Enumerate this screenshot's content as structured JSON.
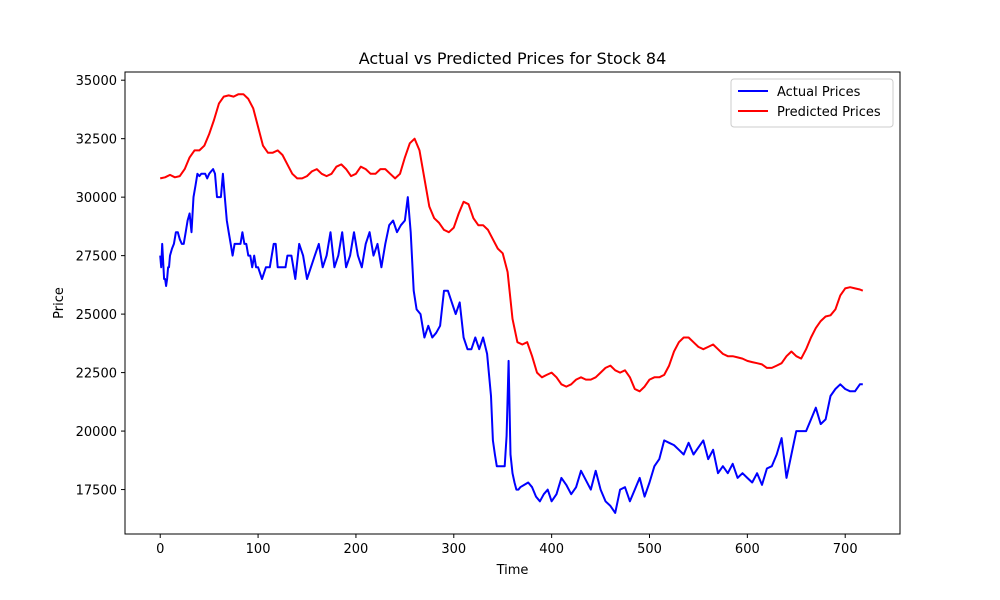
{
  "chart_data": {
    "type": "line",
    "title": "Actual vs Predicted Prices for Stock 84",
    "xlabel": "Time",
    "ylabel": "Price",
    "xlim": [
      -36,
      756
    ],
    "ylim": [
      15600,
      35350
    ],
    "xticks": [
      0,
      100,
      200,
      300,
      400,
      500,
      600,
      700
    ],
    "yticks": [
      17500,
      20000,
      22500,
      25000,
      27500,
      30000,
      32500,
      35000
    ],
    "grid": false,
    "legend_position": "upper right",
    "series": [
      {
        "name": "Actual Prices",
        "color": "#0000ff",
        "x": [
          0,
          1,
          2,
          4,
          5,
          6,
          7,
          8,
          9,
          10,
          12,
          14,
          16,
          18,
          20,
          22,
          24,
          26,
          28,
          30,
          32,
          34,
          36,
          38,
          40,
          42,
          44,
          46,
          48,
          50,
          52,
          54,
          56,
          58,
          60,
          62,
          64,
          66,
          68,
          70,
          72,
          74,
          76,
          78,
          80,
          82,
          84,
          86,
          88,
          90,
          92,
          94,
          96,
          98,
          100,
          104,
          108,
          112,
          116,
          118,
          120,
          124,
          128,
          130,
          134,
          138,
          142,
          146,
          150,
          154,
          158,
          162,
          166,
          170,
          174,
          178,
          182,
          186,
          190,
          194,
          198,
          202,
          206,
          210,
          214,
          218,
          222,
          226,
          230,
          234,
          238,
          242,
          246,
          250,
          253,
          256,
          259,
          262,
          266,
          270,
          274,
          278,
          282,
          286,
          290,
          294,
          298,
          302,
          306,
          310,
          314,
          318,
          322,
          326,
          330,
          334,
          338,
          340,
          342,
          344,
          346,
          348,
          350,
          352,
          354,
          356,
          358,
          360,
          362,
          364,
          366,
          368,
          372,
          376,
          380,
          384,
          388,
          392,
          396,
          400,
          405,
          410,
          415,
          420,
          425,
          430,
          435,
          440,
          445,
          450,
          455,
          460,
          465,
          470,
          475,
          480,
          485,
          490,
          495,
          500,
          505,
          510,
          515,
          520,
          525,
          530,
          535,
          540,
          545,
          550,
          555,
          560,
          565,
          570,
          575,
          580,
          585,
          590,
          595,
          600,
          605,
          610,
          615,
          620,
          625,
          630,
          635,
          640,
          645,
          650,
          655,
          660,
          665,
          670,
          675,
          680,
          685,
          690,
          695,
          700,
          705,
          710,
          715,
          718
        ],
        "y": [
          27500,
          27000,
          28000,
          26500,
          26500,
          26200,
          26500,
          27000,
          27000,
          27500,
          27800,
          28000,
          28500,
          28500,
          28200,
          28000,
          28000,
          28500,
          29000,
          29300,
          28500,
          30000,
          30500,
          31000,
          30900,
          31000,
          31000,
          31000,
          30800,
          31000,
          31100,
          31200,
          31000,
          30000,
          30000,
          30000,
          31000,
          30000,
          29000,
          28500,
          28000,
          27500,
          28000,
          28000,
          28000,
          28000,
          28500,
          28000,
          28000,
          27500,
          27500,
          27000,
          27500,
          27000,
          27000,
          26500,
          27000,
          27000,
          28000,
          28000,
          27000,
          27000,
          27000,
          27500,
          27500,
          26500,
          28000,
          27500,
          26500,
          27000,
          27500,
          28000,
          27000,
          27500,
          28500,
          27000,
          27500,
          28500,
          27000,
          27500,
          28500,
          27500,
          27000,
          28000,
          28500,
          27500,
          28000,
          27000,
          28000,
          28800,
          29000,
          28500,
          28800,
          29000,
          30000,
          28500,
          26000,
          25200,
          25000,
          24000,
          24500,
          24000,
          24200,
          24500,
          26000,
          26000,
          25500,
          25000,
          25500,
          24000,
          23500,
          23500,
          24000,
          23500,
          24000,
          23300,
          21500,
          19600,
          19000,
          18500,
          18500,
          18500,
          18500,
          18500,
          19800,
          23000,
          19000,
          18200,
          17800,
          17500,
          17500,
          17600,
          17700,
          17800,
          17600,
          17200,
          17000,
          17300,
          17500,
          17000,
          17300,
          18000,
          17700,
          17300,
          17600,
          18300,
          17900,
          17500,
          18300,
          17500,
          17000,
          16800,
          16500,
          17500,
          17600,
          17000,
          17500,
          18000,
          17200,
          17800,
          18500,
          18800,
          19600,
          19500,
          19400,
          19200,
          19000,
          19500,
          19000,
          19300,
          19600,
          18800,
          19200,
          18200,
          18500,
          18200,
          18600,
          18000,
          18200,
          18000,
          17800,
          18200,
          17700,
          18400,
          18500,
          19000,
          19700,
          18000,
          19000,
          20000,
          20000,
          20000,
          20500,
          21000,
          20300,
          20500,
          21500,
          21800,
          22000,
          21800,
          21700,
          21700,
          22000,
          22000
        ]
      },
      {
        "name": "Predicted Prices",
        "color": "#ff0000",
        "x": [
          0,
          5,
          10,
          15,
          20,
          25,
          30,
          35,
          40,
          45,
          50,
          55,
          60,
          65,
          70,
          75,
          80,
          85,
          90,
          95,
          100,
          105,
          110,
          115,
          120,
          125,
          130,
          135,
          140,
          145,
          150,
          155,
          160,
          165,
          170,
          175,
          180,
          185,
          190,
          195,
          200,
          205,
          210,
          215,
          220,
          225,
          230,
          235,
          240,
          245,
          250,
          255,
          260,
          265,
          270,
          275,
          280,
          285,
          290,
          295,
          300,
          305,
          310,
          315,
          320,
          325,
          330,
          335,
          340,
          345,
          350,
          355,
          360,
          365,
          370,
          375,
          380,
          385,
          390,
          395,
          400,
          405,
          410,
          415,
          420,
          425,
          430,
          435,
          440,
          445,
          450,
          455,
          460,
          465,
          470,
          475,
          480,
          485,
          490,
          495,
          500,
          505,
          510,
          515,
          520,
          525,
          530,
          535,
          540,
          545,
          550,
          555,
          560,
          565,
          570,
          575,
          580,
          585,
          590,
          595,
          600,
          605,
          610,
          615,
          620,
          625,
          630,
          635,
          640,
          645,
          650,
          655,
          660,
          665,
          670,
          675,
          680,
          685,
          690,
          695,
          700,
          705,
          710,
          715,
          718
        ],
        "y": [
          30800,
          30850,
          30950,
          30850,
          30900,
          31200,
          31700,
          32000,
          32000,
          32200,
          32700,
          33300,
          34000,
          34300,
          34350,
          34300,
          34400,
          34400,
          34200,
          33800,
          33000,
          32200,
          31900,
          31900,
          32000,
          31800,
          31400,
          31000,
          30800,
          30800,
          30900,
          31100,
          31200,
          31000,
          30900,
          31000,
          31300,
          31400,
          31200,
          30900,
          31000,
          31300,
          31200,
          31000,
          31000,
          31200,
          31200,
          31000,
          30800,
          31000,
          31700,
          32300,
          32500,
          32000,
          30800,
          29600,
          29100,
          28900,
          28600,
          28500,
          28700,
          29300,
          29800,
          29700,
          29100,
          28800,
          28800,
          28600,
          28200,
          27800,
          27600,
          26800,
          24800,
          23800,
          23700,
          23800,
          23200,
          22500,
          22300,
          22400,
          22500,
          22300,
          22000,
          21900,
          22000,
          22200,
          22300,
          22200,
          22200,
          22300,
          22500,
          22700,
          22800,
          22600,
          22500,
          22600,
          22300,
          21800,
          21700,
          21900,
          22200,
          22300,
          22300,
          22400,
          22800,
          23400,
          23800,
          24000,
          24000,
          23800,
          23600,
          23500,
          23600,
          23700,
          23500,
          23300,
          23200,
          23200,
          23150,
          23100,
          23000,
          22950,
          22900,
          22850,
          22700,
          22700,
          22800,
          22900,
          23200,
          23400,
          23200,
          23100,
          23500,
          24000,
          24400,
          24700,
          24900,
          24950,
          25200,
          25800,
          26100,
          26150,
          26100,
          26050,
          26000
        ]
      }
    ]
  }
}
